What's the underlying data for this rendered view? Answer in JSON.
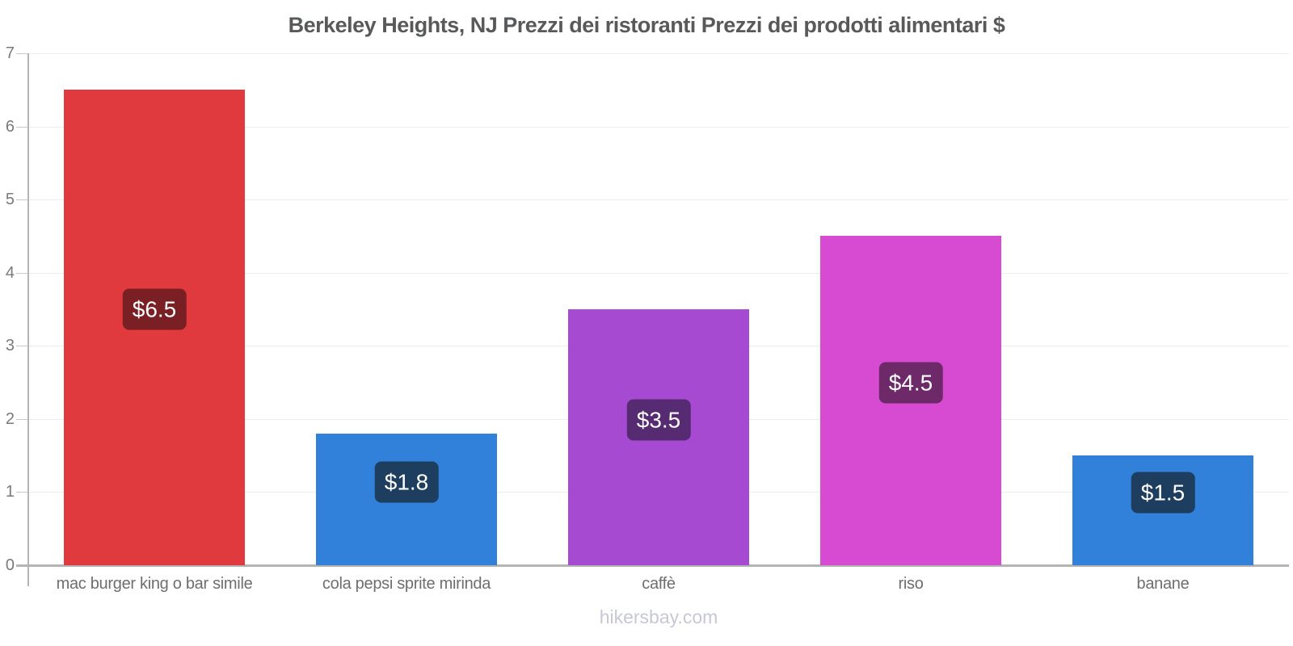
{
  "footer": "hikersbay.com",
  "chart_data": {
    "type": "bar",
    "title": "Berkeley Heights, NJ Prezzi dei ristoranti Prezzi dei prodotti alimentari $",
    "categories": [
      "mac burger king o bar simile",
      "cola pepsi sprite mirinda",
      "caffè",
      "riso",
      "banane"
    ],
    "values": [
      6.5,
      1.8,
      3.5,
      4.5,
      1.5
    ],
    "value_labels": [
      "$6.5",
      "$1.8",
      "$3.5",
      "$4.5",
      "$1.5"
    ],
    "bar_colors": [
      "#e03a3e",
      "#3180d9",
      "#a64ad2",
      "#d74ad2",
      "#3180d9"
    ],
    "badge_colors": [
      "#7a2024",
      "#1d3e5e",
      "#562b71",
      "#6e2a68",
      "#1d3e5e"
    ],
    "xlabel": "",
    "ylabel": "",
    "ylim": [
      0,
      7
    ],
    "yticks": [
      0,
      1,
      2,
      3,
      4,
      5,
      6,
      7
    ],
    "grid": true,
    "legend": false,
    "currency": "$",
    "watermark": "hikersbay.com",
    "title_color": "#58595b",
    "axis_color": "#b4b4b4",
    "gridline_color": "#ededed",
    "axis_label_color": "#7a7a7a",
    "category_label_color": "#6e6e6e",
    "watermark_color": "#c7c8d6"
  }
}
